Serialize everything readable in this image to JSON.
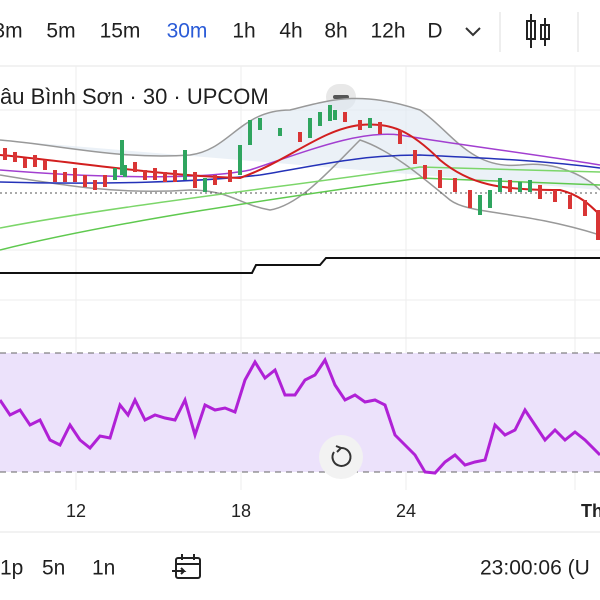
{
  "toolbar": {
    "intervals": [
      "3m",
      "5m",
      "15m",
      "30m",
      "1h",
      "4h",
      "8h",
      "12h",
      "D"
    ],
    "active": "30m"
  },
  "chart": {
    "title": "âu Bình Sơn · 30 · UPCOM",
    "x_labels": [
      "12",
      "18",
      "24",
      "Th"
    ]
  },
  "bottom_bar": {
    "ranges": [
      "1p",
      "5n",
      "1n"
    ],
    "clock": "23:00:06 (U"
  }
}
